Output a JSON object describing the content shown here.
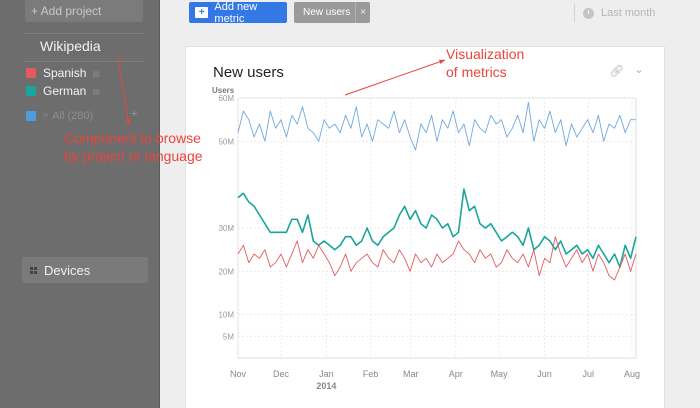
{
  "sidebar": {
    "add_project": "+ Add project",
    "project_title": "Wikipedia",
    "metrics": [
      {
        "label": "Spanish",
        "color": "#e5595c"
      },
      {
        "label": "German",
        "color": "#1aa59c"
      }
    ],
    "all_label": "All (280)",
    "all_plus": "+",
    "devices_label": "Devices"
  },
  "toolbar": {
    "add_metric_label": "Add new metric",
    "chip_label": "New users",
    "chip_close": "×",
    "range_label": "Last month"
  },
  "card": {
    "title": "New users",
    "link_icon": "link-icon",
    "chevron_icon": "chevron-down-icon"
  },
  "annotations": {
    "visualization": [
      "Visualization",
      "of metrics"
    ],
    "component": [
      "Component to browse",
      "by project or language"
    ]
  },
  "chart_data": {
    "type": "line",
    "ylabel": "Users",
    "ylim": [
      0,
      60
    ],
    "y_ticks": [
      {
        "v": 60,
        "label": "60M"
      },
      {
        "v": 50,
        "label": "50M"
      },
      {
        "v": 30,
        "label": "30M"
      },
      {
        "v": 20,
        "label": "20M"
      },
      {
        "v": 10,
        "label": "10M"
      },
      {
        "v": 5,
        "label": "5M"
      }
    ],
    "x_ticks": [
      {
        "t": 0.0,
        "label": "Nov"
      },
      {
        "t": 0.108,
        "label": "Dec"
      },
      {
        "t": 0.222,
        "label": "Jan"
      },
      {
        "t": 0.333,
        "label": "Feb"
      },
      {
        "t": 0.434,
        "label": "Mar"
      },
      {
        "t": 0.547,
        "label": "Apr"
      },
      {
        "t": 0.656,
        "label": "May"
      },
      {
        "t": 0.77,
        "label": "Jun"
      },
      {
        "t": 0.88,
        "label": "Jul"
      },
      {
        "t": 0.99,
        "label": "Aug"
      }
    ],
    "year_label": {
      "t": 0.222,
      "label": "2014"
    },
    "series": [
      {
        "name": "All",
        "color": "#6fa8e0",
        "values": [
          52,
          57,
          55,
          51,
          54,
          50,
          57,
          53,
          55,
          51,
          56,
          54,
          58,
          53,
          52,
          50,
          55,
          53,
          54,
          52,
          56,
          53,
          58,
          51,
          54,
          50,
          55,
          54,
          53,
          57,
          52,
          55,
          51,
          48,
          54,
          52,
          56,
          50,
          55,
          53,
          57,
          52,
          54,
          49,
          55,
          53,
          52,
          56,
          54,
          55,
          51,
          53,
          56,
          52,
          59,
          50,
          55,
          53,
          57,
          52,
          55,
          49,
          54,
          51,
          53,
          55,
          52,
          56,
          50,
          54,
          53,
          56,
          52,
          55,
          55
        ]
      },
      {
        "name": "German",
        "color": "#1aa59c",
        "values": [
          37,
          38,
          36,
          35,
          33,
          31,
          29,
          29,
          29,
          29,
          32,
          32,
          29,
          33,
          27,
          26,
          27,
          26,
          25,
          26,
          28,
          28,
          26,
          27,
          30,
          27,
          26,
          28,
          29,
          30,
          33,
          35,
          32,
          34,
          31,
          30,
          33,
          32,
          30,
          31,
          28,
          29,
          39,
          34,
          35,
          31,
          30,
          31,
          29,
          27,
          28,
          29,
          28,
          26,
          30,
          25,
          26,
          28,
          27,
          25,
          27,
          24,
          25,
          26,
          24,
          25,
          23,
          26,
          24,
          22,
          24,
          21,
          26,
          23,
          28
        ]
      },
      {
        "name": "Spanish",
        "color": "#e5595c",
        "values": [
          24,
          26,
          22,
          24,
          23,
          25,
          21,
          22,
          24,
          21,
          24,
          27,
          22,
          25,
          23,
          26,
          24,
          22,
          19,
          21,
          24,
          20,
          22,
          23,
          24,
          22,
          21,
          25,
          23,
          22,
          25,
          23,
          20,
          24,
          22,
          23,
          21,
          24,
          22,
          23,
          24,
          27,
          25,
          24,
          22,
          25,
          23,
          24,
          21,
          22,
          25,
          23,
          22,
          24,
          21,
          25,
          19,
          23,
          22,
          28,
          24,
          21,
          23,
          25,
          22,
          24,
          20,
          24,
          22,
          19,
          18,
          21,
          24,
          20,
          24
        ]
      }
    ]
  }
}
